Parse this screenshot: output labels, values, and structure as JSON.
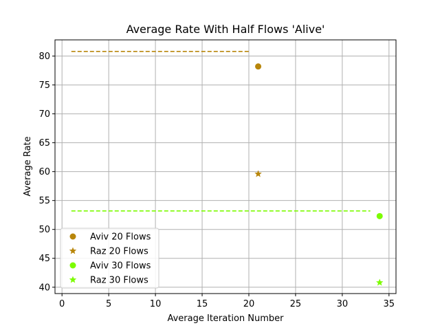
{
  "chart_data": {
    "type": "scatter",
    "title": "Average Rate With Half Flows 'Alive'",
    "xlabel": "Average Iteration Number",
    "ylabel": "Average Rate",
    "xlim": [
      -0.75,
      35.75
    ],
    "ylim": [
      38.9,
      82.8
    ],
    "xticks": [
      0,
      5,
      10,
      15,
      20,
      25,
      30,
      35
    ],
    "yticks": [
      40,
      45,
      50,
      55,
      60,
      65,
      70,
      75,
      80
    ],
    "grid": true,
    "legend_position": "lower-left",
    "series": [
      {
        "name": "Aviv 20 Flows",
        "marker": "circle",
        "color": "#b8860b",
        "points": [
          [
            21,
            78.2
          ]
        ]
      },
      {
        "name": "Raz 20 Flows",
        "marker": "star",
        "color": "#b8860b",
        "points": [
          [
            21,
            59.6
          ]
        ]
      },
      {
        "name": "Aviv 30 Flows",
        "marker": "circle",
        "color": "#7cfc00",
        "points": [
          [
            34,
            52.3
          ]
        ]
      },
      {
        "name": "Raz 30 Flows",
        "marker": "star",
        "color": "#7cfc00",
        "points": [
          [
            34,
            40.8
          ]
        ]
      }
    ],
    "reference_lines": [
      {
        "color": "#b8860b",
        "style": "dashed",
        "x": [
          1,
          20
        ],
        "y": 80.8
      },
      {
        "color": "#7cfc00",
        "style": "dashed",
        "x": [
          1,
          33
        ],
        "y": 53.2
      }
    ]
  }
}
